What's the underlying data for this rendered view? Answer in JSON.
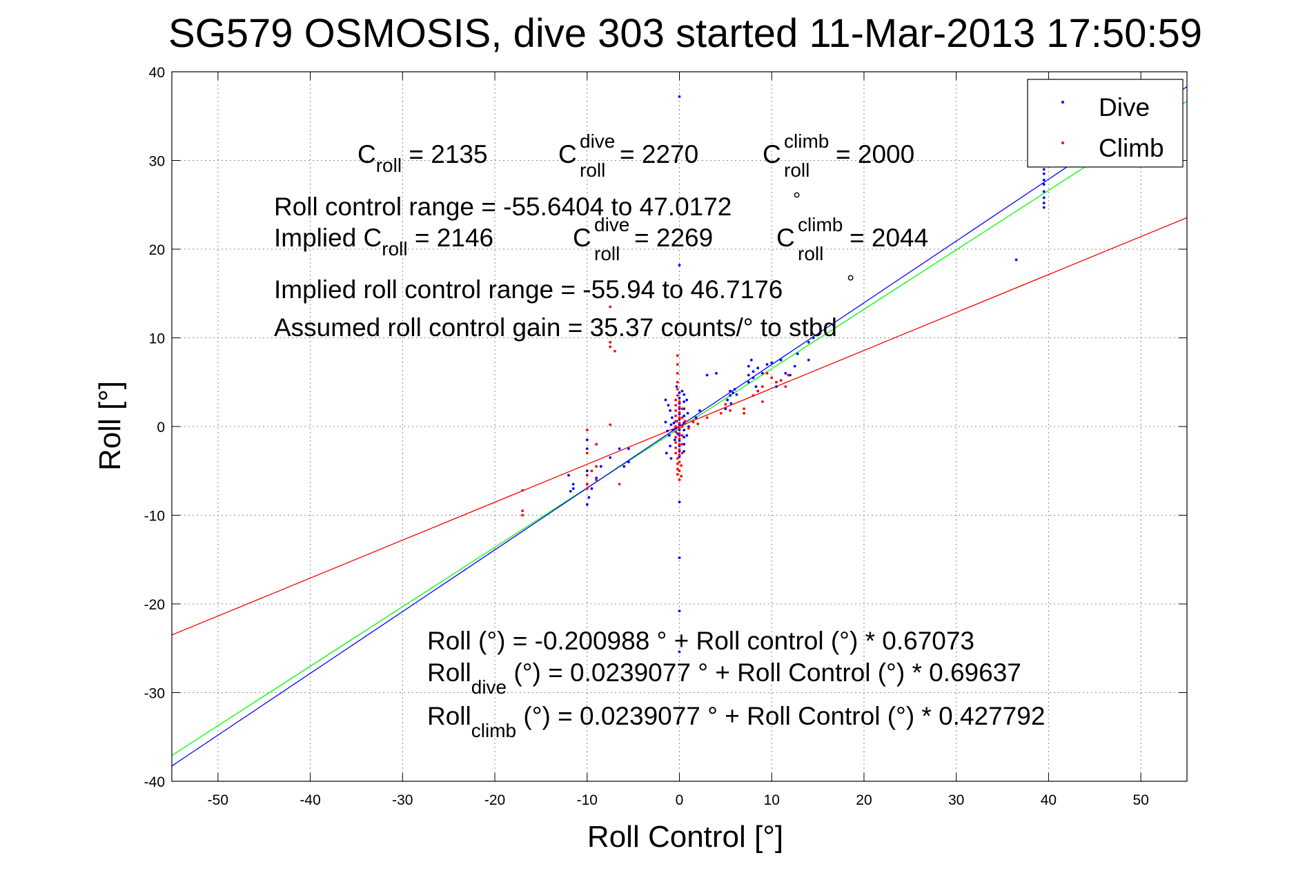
{
  "chart_data": {
    "type": "scatter",
    "title": "SG579 OSMOSIS, dive 303 started 11-Mar-2013 17:50:59",
    "xlabel": "Roll Control [°]",
    "ylabel": "Roll [°]",
    "xlim": [
      -55,
      55
    ],
    "ylim": [
      -40,
      40
    ],
    "xticks": [
      -50,
      -40,
      -30,
      -20,
      -10,
      0,
      10,
      20,
      30,
      40,
      50
    ],
    "yticks": [
      -40,
      -30,
      -20,
      -10,
      0,
      10,
      20,
      30,
      40
    ],
    "grid": true,
    "legend_position": "top-right",
    "colors": {
      "dive": "#0000ff",
      "climb": "#ff0000",
      "overall_fit": "#00ff00",
      "axes": "#000000",
      "grid": "#888888"
    },
    "series": [
      {
        "name": "Dive",
        "color": "#0000ff",
        "marker": "dot",
        "points": [
          [
            0.0,
            37.2
          ],
          [
            0.0,
            18.2
          ],
          [
            0.0,
            -8.5
          ],
          [
            0.0,
            -14.8
          ],
          [
            0.0,
            -20.8
          ],
          [
            0.0,
            -25.4
          ],
          [
            -1.5,
            3.0
          ],
          [
            -1.2,
            2.4
          ],
          [
            -1.0,
            1.8
          ],
          [
            -0.8,
            1.0
          ],
          [
            -0.6,
            0.4
          ],
          [
            -0.4,
            -0.2
          ],
          [
            -0.2,
            -0.8
          ],
          [
            -0.5,
            -1.5
          ],
          [
            -1.0,
            -2.2
          ],
          [
            -1.4,
            -3.0
          ],
          [
            -0.9,
            -3.6
          ],
          [
            -1.5,
            0.5
          ],
          [
            -1.3,
            -0.5
          ],
          [
            -1.1,
            -1.0
          ],
          [
            -0.9,
            0.2
          ],
          [
            -0.7,
            -0.4
          ],
          [
            -0.3,
            0.6
          ],
          [
            0.0,
            3.8
          ],
          [
            0.0,
            3.2
          ],
          [
            0.0,
            2.6
          ],
          [
            0.0,
            2.0
          ],
          [
            0.0,
            1.4
          ],
          [
            0.0,
            0.8
          ],
          [
            0.0,
            0.2
          ],
          [
            0.0,
            -0.4
          ],
          [
            0.0,
            -1.0
          ],
          [
            0.0,
            -1.6
          ],
          [
            0.0,
            -2.2
          ],
          [
            0.0,
            -2.8
          ],
          [
            0.0,
            -3.4
          ],
          [
            0.5,
            3.6
          ],
          [
            0.5,
            2.8
          ],
          [
            0.5,
            2.0
          ],
          [
            0.5,
            1.2
          ],
          [
            0.5,
            0.4
          ],
          [
            0.5,
            -0.4
          ],
          [
            0.5,
            -1.2
          ],
          [
            0.5,
            -2.0
          ],
          [
            0.5,
            -2.8
          ],
          [
            -0.3,
            4.5
          ],
          [
            0.3,
            4.0
          ],
          [
            0.8,
            3.0
          ],
          [
            0.9,
            1.5
          ],
          [
            1.0,
            0.0
          ],
          [
            0.8,
            -1.0
          ],
          [
            1.8,
            1.0
          ],
          [
            2.2,
            1.8
          ],
          [
            3.0,
            5.8
          ],
          [
            4.0,
            6.0
          ],
          [
            5.0,
            2.0
          ],
          [
            5.2,
            3.0
          ],
          [
            5.5,
            3.5
          ],
          [
            5.5,
            4.0
          ],
          [
            5.8,
            3.8
          ],
          [
            6.0,
            4.2
          ],
          [
            5.6,
            2.6
          ],
          [
            6.2,
            3.6
          ],
          [
            7.5,
            5.0
          ],
          [
            7.5,
            5.8
          ],
          [
            7.5,
            6.8
          ],
          [
            7.8,
            7.5
          ],
          [
            8.0,
            5.5
          ],
          [
            8.0,
            6.2
          ],
          [
            8.3,
            4.5
          ],
          [
            8.5,
            6.6
          ],
          [
            9.0,
            6.0
          ],
          [
            9.5,
            7.0
          ],
          [
            10.0,
            7.2
          ],
          [
            11.0,
            7.5
          ],
          [
            11.5,
            6.0
          ],
          [
            12.0,
            5.8
          ],
          [
            12.5,
            6.8
          ],
          [
            12.8,
            8.2
          ],
          [
            14.0,
            9.5
          ],
          [
            14.0,
            7.5
          ],
          [
            14.5,
            10.0
          ],
          [
            10.5,
            4.5
          ],
          [
            -5.5,
            -2.5
          ],
          [
            -5.5,
            -4.0
          ],
          [
            -6.0,
            -4.5
          ],
          [
            -6.5,
            -2.5
          ],
          [
            -7.5,
            -3.5
          ],
          [
            -8.5,
            -4.5
          ],
          [
            -9.0,
            -5.8
          ],
          [
            -9.5,
            -7.0
          ],
          [
            -9.8,
            -8.0
          ],
          [
            -10.0,
            -5.0
          ],
          [
            -10.0,
            -6.5
          ],
          [
            -10.0,
            -8.8
          ],
          [
            -10.0,
            -1.5
          ],
          [
            -10.0,
            -2.5
          ],
          [
            -11.5,
            -6.5
          ],
          [
            -11.5,
            -7.0
          ],
          [
            -12.0,
            -5.5
          ],
          [
            -11.8,
            -7.3
          ],
          [
            36.5,
            18.8
          ],
          [
            39.5,
            31.0
          ],
          [
            39.5,
            29.0
          ],
          [
            39.5,
            28.5
          ],
          [
            39.5,
            27.8
          ],
          [
            39.5,
            27.3
          ],
          [
            39.5,
            26.5
          ],
          [
            39.5,
            25.8
          ],
          [
            39.5,
            25.2
          ],
          [
            39.5,
            24.7
          ]
        ]
      },
      {
        "name": "Climb",
        "color": "#ff0000",
        "marker": "dot",
        "points": [
          [
            -0.2,
            8.0
          ],
          [
            -0.2,
            7.0
          ],
          [
            -0.2,
            6.0
          ],
          [
            -0.2,
            5.0
          ],
          [
            -0.2,
            4.2
          ],
          [
            -0.2,
            3.5
          ],
          [
            -0.4,
            3.0
          ],
          [
            -0.4,
            2.4
          ],
          [
            -0.4,
            1.8
          ],
          [
            -0.4,
            1.2
          ],
          [
            -0.4,
            0.6
          ],
          [
            -0.4,
            0.0
          ],
          [
            -0.4,
            -0.6
          ],
          [
            -0.4,
            -1.2
          ],
          [
            -0.4,
            -1.8
          ],
          [
            -0.4,
            -2.4
          ],
          [
            -0.4,
            -3.0
          ],
          [
            0.0,
            2.8
          ],
          [
            0.0,
            2.2
          ],
          [
            0.0,
            1.6
          ],
          [
            0.0,
            1.0
          ],
          [
            0.0,
            0.4
          ],
          [
            0.0,
            -0.2
          ],
          [
            0.0,
            -0.8
          ],
          [
            0.0,
            -1.4
          ],
          [
            0.0,
            -2.0
          ],
          [
            0.0,
            -2.6
          ],
          [
            0.0,
            -3.2
          ],
          [
            0.3,
            2.0
          ],
          [
            0.3,
            1.0
          ],
          [
            0.3,
            0.0
          ],
          [
            0.3,
            -1.0
          ],
          [
            0.3,
            -2.0
          ],
          [
            0.3,
            -3.0
          ],
          [
            -0.2,
            -3.6
          ],
          [
            -0.2,
            -4.2
          ],
          [
            -0.2,
            -4.8
          ],
          [
            -0.2,
            -5.4
          ],
          [
            0.0,
            -4.0
          ],
          [
            0.0,
            -5.0
          ],
          [
            0.0,
            -6.0
          ],
          [
            0.2,
            -4.4
          ],
          [
            0.2,
            -5.6
          ],
          [
            0.6,
            0.6
          ],
          [
            1.0,
            -0.2
          ],
          [
            1.5,
            0.5
          ],
          [
            2.0,
            0.3
          ],
          [
            3.0,
            1.0
          ],
          [
            4.5,
            1.5
          ],
          [
            5.0,
            2.5
          ],
          [
            5.5,
            1.8
          ],
          [
            7.0,
            1.5
          ],
          [
            7.0,
            2.0
          ],
          [
            8.0,
            3.5
          ],
          [
            8.5,
            4.0
          ],
          [
            9.0,
            4.5
          ],
          [
            10.0,
            5.5
          ],
          [
            10.5,
            5.0
          ],
          [
            11.0,
            5.2
          ],
          [
            11.5,
            4.5
          ],
          [
            11.8,
            5.8
          ],
          [
            9.5,
            6.0
          ],
          [
            9.0,
            2.8
          ],
          [
            -7.5,
            13.5
          ],
          [
            -7.5,
            9.5
          ],
          [
            -7.5,
            9.0
          ],
          [
            -7.0,
            8.5
          ],
          [
            -7.5,
            0.2
          ],
          [
            -9.0,
            -2.0
          ],
          [
            -9.0,
            -4.5
          ],
          [
            -9.5,
            -5.0
          ],
          [
            -9.0,
            -6.0
          ],
          [
            -10.0,
            -3.0
          ],
          [
            -10.0,
            -0.4
          ],
          [
            -10.0,
            -5.5
          ],
          [
            -10.0,
            -6.5
          ],
          [
            -10.0,
            -7.0
          ],
          [
            -6.5,
            -6.5
          ],
          [
            -17.0,
            -7.2
          ],
          [
            -17.0,
            -9.5
          ],
          [
            -17.0,
            -10.0
          ]
        ]
      }
    ],
    "fit_lines": [
      {
        "color": "#00ff00",
        "intercept": -0.200988,
        "slope": 0.67073
      },
      {
        "color": "#0000ff",
        "intercept": 0.0239077,
        "slope": 0.69637
      },
      {
        "color": "#ff0000",
        "intercept": 0.0239077,
        "slope": 0.427792
      }
    ],
    "annotations": {
      "croll": {
        "base": "C",
        "sub": "roll",
        "value": " = 2135"
      },
      "croll_dive": {
        "base": "C",
        "sup": "dive",
        "sub": "roll",
        "value": " = 2270"
      },
      "croll_climb": {
        "base": "C",
        "sup": "climb",
        "sub": "roll",
        "value": " = 2000"
      },
      "range_line": "Roll control range = -55.6404 to 47.0172",
      "implied_prefix": "Implied C",
      "implied_sub": "roll",
      "implied_value": " = 2146",
      "implied_dive": {
        "base": "C",
        "sup": "dive",
        "sub": "roll",
        "value": " = 2269"
      },
      "implied_climb": {
        "base": "C",
        "sup": "climb",
        "sub": "roll",
        "value": " = 2044"
      },
      "implied_range_line": "Implied roll control range = -55.94 to 46.7176",
      "gain_line": "Assumed roll control gain = 35.37 counts/° to stbd",
      "degree_mark": "°",
      "fit_overall": "Roll (°) = -0.200988 ° + Roll control (°) * 0.67073",
      "fit_dive_base": "Roll",
      "fit_dive_sub": "dive",
      "fit_dive_rest": " (°) = 0.0239077 ° + Roll Control (°) * 0.69637",
      "fit_climb_base": "Roll",
      "fit_climb_sub": "climb",
      "fit_climb_rest": " (°) = 0.0239077 ° + Roll Control (°) * 0.427792"
    }
  }
}
